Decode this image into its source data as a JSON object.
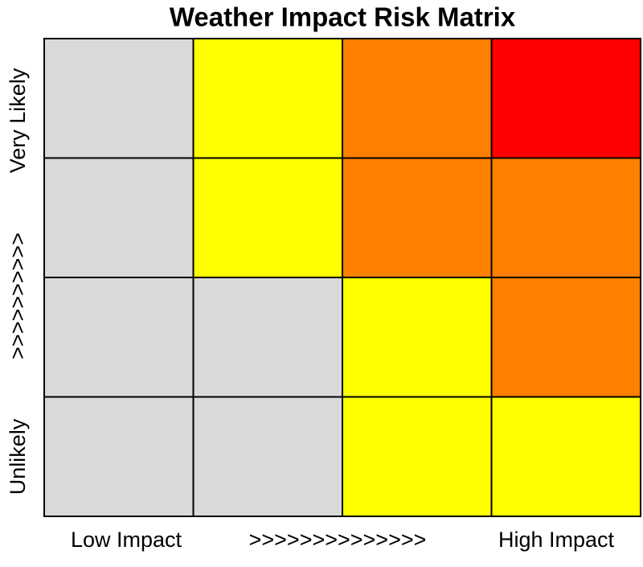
{
  "title": "Weather Impact Risk Matrix",
  "y_axis": {
    "top": "Very Likely",
    "middle": ">>>>>>>>>>",
    "bottom": "Unlikely"
  },
  "x_axis": {
    "left": "Low Impact",
    "middle": ">>>>>>>>>>>>>>",
    "right": "High Impact"
  },
  "cells": [
    [
      "#d9d9d9",
      "#ffff00",
      "#ff8000",
      "#ff0000"
    ],
    [
      "#d9d9d9",
      "#ffff00",
      "#ff8000",
      "#ff8000"
    ],
    [
      "#d9d9d9",
      "#d9d9d9",
      "#ffff00",
      "#ff8000"
    ],
    [
      "#d9d9d9",
      "#d9d9d9",
      "#ffff00",
      "#ffff00"
    ]
  ]
}
